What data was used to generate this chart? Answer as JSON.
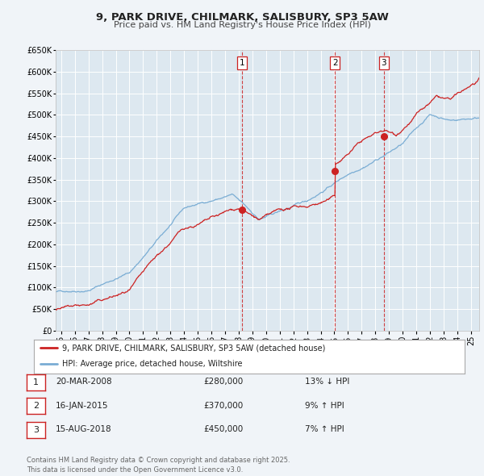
{
  "title": "9, PARK DRIVE, CHILMARK, SALISBURY, SP3 5AW",
  "subtitle": "Price paid vs. HM Land Registry's House Price Index (HPI)",
  "background_color": "#f0f4f8",
  "plot_bg_color": "#dde8f0",
  "grid_color": "#ffffff",
  "ylim": [
    0,
    650000
  ],
  "yticks": [
    0,
    50000,
    100000,
    150000,
    200000,
    250000,
    300000,
    350000,
    400000,
    450000,
    500000,
    550000,
    600000,
    650000
  ],
  "ytick_labels": [
    "£0",
    "£50K",
    "£100K",
    "£150K",
    "£200K",
    "£250K",
    "£300K",
    "£350K",
    "£400K",
    "£450K",
    "£500K",
    "£550K",
    "£600K",
    "£650K"
  ],
  "hpi_color": "#7aadd4",
  "price_color": "#cc2222",
  "sale_marker_color": "#cc2222",
  "vline_color": "#cc2222",
  "legend_label_price": "9, PARK DRIVE, CHILMARK, SALISBURY, SP3 5AW (detached house)",
  "legend_label_hpi": "HPI: Average price, detached house, Wiltshire",
  "sales": [
    {
      "label": "1",
      "date_num": 2008.22,
      "price": 280000,
      "pct": "13%",
      "dir": "↓",
      "date_str": "20-MAR-2008"
    },
    {
      "label": "2",
      "date_num": 2015.04,
      "price": 370000,
      "pct": "9%",
      "dir": "↑",
      "date_str": "16-JAN-2015"
    },
    {
      "label": "3",
      "date_num": 2018.62,
      "price": 450000,
      "pct": "7%",
      "dir": "↑",
      "date_str": "15-AUG-2018"
    }
  ],
  "footer": "Contains HM Land Registry data © Crown copyright and database right 2025.\nThis data is licensed under the Open Government Licence v3.0.",
  "xlim_start": 1994.6,
  "xlim_end": 2025.6
}
